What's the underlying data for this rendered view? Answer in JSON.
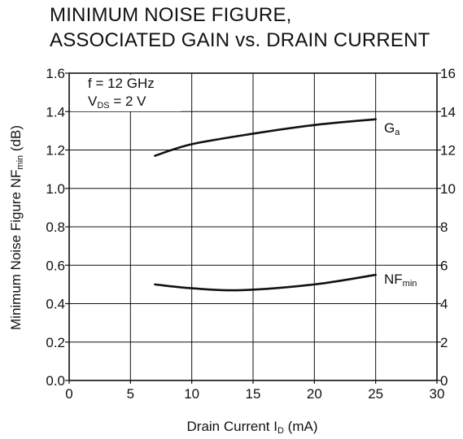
{
  "chart_data": {
    "type": "line",
    "title_lines": [
      "MINIMUM NOISE FIGURE,",
      "ASSOCIATED GAIN vs. DRAIN CURRENT"
    ],
    "xlabel": {
      "main": "Drain Current  I",
      "sub": "D",
      "unit": " (mA)"
    },
    "ylabel_left": {
      "main": "Minimum Noise Figure  NF",
      "sub": "min",
      "unit": " (dB)"
    },
    "xlim": [
      0,
      30
    ],
    "ylim_left": [
      0.0,
      1.6
    ],
    "ylim_right": [
      0,
      16
    ],
    "x_ticks": [
      "0",
      "5",
      "10",
      "15",
      "20",
      "25",
      "30"
    ],
    "y_ticks_left": [
      "0.0",
      "0.2",
      "0.4",
      "0.6",
      "0.8",
      "1.0",
      "1.2",
      "1.4",
      "1.6"
    ],
    "y_ticks_right": [
      "0",
      "2",
      "4",
      "6",
      "8",
      "10",
      "12",
      "14",
      "16"
    ],
    "grid": true,
    "conditions": [
      {
        "main": "f = 12 GHz"
      },
      {
        "main": "V",
        "sub": "DS",
        "rest": " = 2 V"
      }
    ],
    "series": [
      {
        "name": "G",
        "name_sub": "a",
        "axis": "right",
        "x": [
          7,
          10,
          15,
          20,
          25
        ],
        "y": [
          11.7,
          12.3,
          12.85,
          13.3,
          13.6
        ]
      },
      {
        "name": "NF",
        "name_sub": "min",
        "axis": "left",
        "x": [
          7,
          10,
          14,
          20,
          25
        ],
        "y": [
          0.5,
          0.48,
          0.47,
          0.5,
          0.55
        ]
      }
    ]
  }
}
